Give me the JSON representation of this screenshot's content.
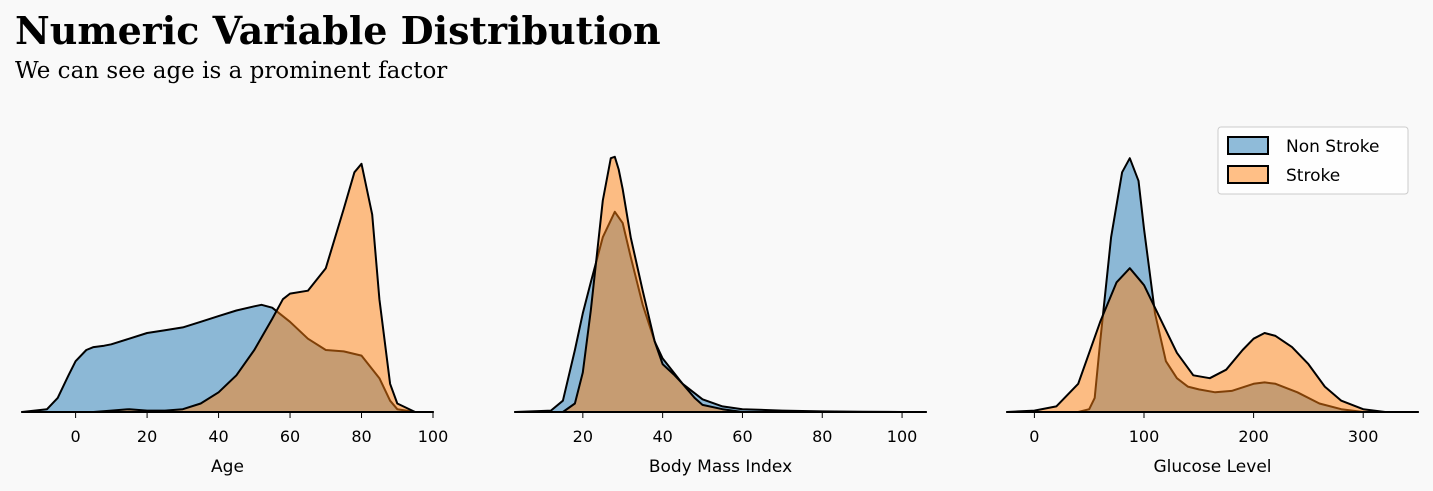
{
  "header": {
    "title": "Numeric Variable Distribution",
    "subtitle": "We can see age is a prominent factor"
  },
  "colors": {
    "non_stroke": "#1f77b4",
    "stroke": "#ff7f0e",
    "background": "#f9f9f9"
  },
  "chart_data": [
    {
      "type": "area",
      "xlabel": "Age",
      "xlim": [
        -15,
        100
      ],
      "ticks": [
        0,
        20,
        40,
        60,
        80,
        100
      ],
      "ymax": 1.0,
      "series": [
        {
          "name": "Non Stroke",
          "x": [
            -15,
            -8,
            -5,
            -2,
            0,
            3,
            5,
            8,
            10,
            15,
            20,
            25,
            30,
            35,
            40,
            45,
            50,
            52,
            55,
            60,
            65,
            70,
            75,
            80,
            85,
            88,
            90,
            95,
            100
          ],
          "y": [
            0,
            0.01,
            0.05,
            0.13,
            0.18,
            0.22,
            0.23,
            0.235,
            0.24,
            0.26,
            0.28,
            0.29,
            0.3,
            0.32,
            0.34,
            0.36,
            0.375,
            0.38,
            0.37,
            0.32,
            0.26,
            0.22,
            0.215,
            0.2,
            0.12,
            0.04,
            0.01,
            0,
            0
          ]
        },
        {
          "name": "Stroke",
          "x": [
            -15,
            5,
            10,
            15,
            20,
            25,
            30,
            35,
            40,
            45,
            50,
            55,
            58,
            60,
            65,
            70,
            75,
            78,
            80,
            83,
            85,
            88,
            90,
            95,
            100
          ],
          "y": [
            0,
            0,
            0.005,
            0.01,
            0.005,
            0.005,
            0.01,
            0.03,
            0.07,
            0.13,
            0.22,
            0.33,
            0.4,
            0.42,
            0.43,
            0.51,
            0.72,
            0.85,
            0.88,
            0.7,
            0.4,
            0.1,
            0.03,
            0,
            0
          ]
        }
      ]
    },
    {
      "type": "area",
      "xlabel": "Body Mass Index",
      "xlim": [
        3,
        106
      ],
      "ticks": [
        20,
        40,
        60,
        80,
        100
      ],
      "ymax": 1.0,
      "series": [
        {
          "name": "Non Stroke",
          "x": [
            3,
            12,
            15,
            18,
            20,
            22,
            25,
            28,
            30,
            32,
            35,
            38,
            40,
            45,
            50,
            55,
            60,
            70,
            80,
            90,
            100,
            106
          ],
          "y": [
            0,
            0.005,
            0.04,
            0.22,
            0.35,
            0.46,
            0.62,
            0.71,
            0.67,
            0.55,
            0.38,
            0.25,
            0.19,
            0.1,
            0.045,
            0.02,
            0.01,
            0.005,
            0.002,
            0.001,
            0,
            0
          ]
        },
        {
          "name": "Stroke",
          "x": [
            3,
            15,
            18,
            20,
            22,
            25,
            27,
            28,
            29,
            30,
            32,
            35,
            38,
            40,
            43,
            45,
            48,
            50,
            55,
            60,
            70,
            106
          ],
          "y": [
            0,
            0,
            0.03,
            0.14,
            0.36,
            0.75,
            0.9,
            0.905,
            0.86,
            0.79,
            0.62,
            0.43,
            0.25,
            0.17,
            0.13,
            0.1,
            0.05,
            0.025,
            0.01,
            0,
            0,
            0
          ]
        }
      ]
    },
    {
      "type": "area",
      "xlabel": "Glucose Level",
      "xlim": [
        -25,
        350
      ],
      "ticks": [
        0,
        100,
        200,
        300
      ],
      "ymax": 1.0,
      "series": [
        {
          "name": "Non Stroke",
          "x": [
            -25,
            40,
            50,
            55,
            60,
            70,
            80,
            87,
            95,
            100,
            110,
            120,
            130,
            140,
            150,
            165,
            180,
            200,
            210,
            220,
            240,
            260,
            280,
            300,
            350
          ],
          "y": [
            0,
            0,
            0.01,
            0.05,
            0.25,
            0.62,
            0.85,
            0.9,
            0.82,
            0.65,
            0.35,
            0.18,
            0.12,
            0.09,
            0.08,
            0.07,
            0.075,
            0.1,
            0.105,
            0.1,
            0.07,
            0.03,
            0.01,
            0,
            0
          ]
        },
        {
          "name": "Stroke",
          "x": [
            -25,
            0,
            20,
            40,
            60,
            75,
            87,
            100,
            115,
            130,
            145,
            160,
            175,
            190,
            200,
            210,
            220,
            235,
            250,
            265,
            280,
            300,
            320,
            350
          ],
          "y": [
            0,
            0.005,
            0.02,
            0.1,
            0.32,
            0.46,
            0.51,
            0.45,
            0.33,
            0.21,
            0.13,
            0.12,
            0.15,
            0.22,
            0.26,
            0.28,
            0.27,
            0.23,
            0.17,
            0.09,
            0.04,
            0.01,
            0,
            0
          ]
        }
      ]
    }
  ],
  "legend": {
    "items": [
      "Non Stroke",
      "Stroke"
    ]
  }
}
